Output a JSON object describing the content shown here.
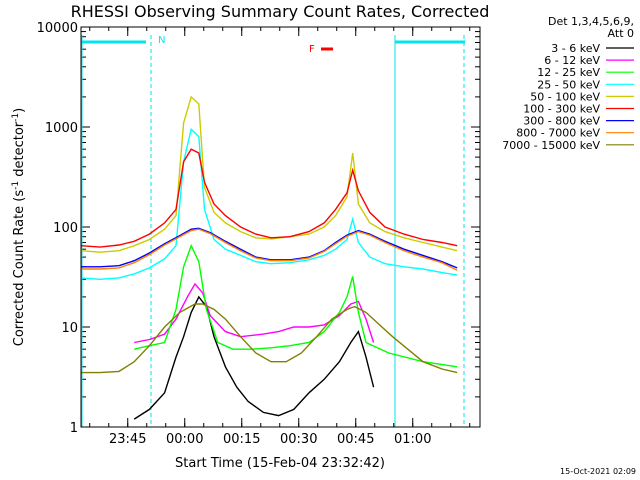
{
  "chart_data": {
    "type": "line",
    "title": "RHESSI Observing Summary Count Rates, Corrected",
    "xlabel": "Start Time (15-Feb-04 23:32:42)",
    "ylabel_main": "Corrected Count Rate (s",
    "ylabel_exp1": "-1",
    "ylabel_mid": " detector",
    "ylabel_exp2": "-1",
    "ylabel_end": ")",
    "yscale": "log",
    "ylim": [
      1,
      10000
    ],
    "xlim_minutes": [
      0,
      105
    ],
    "x_ticks": [
      {
        "label": "23:45",
        "t": 12.3
      },
      {
        "label": "00:00",
        "t": 27.3
      },
      {
        "label": "00:15",
        "t": 42.3
      },
      {
        "label": "00:30",
        "t": 57.3
      },
      {
        "label": "00:45",
        "t": 72.3
      },
      {
        "label": "01:00",
        "t": 87.3
      }
    ],
    "y_ticks": [
      {
        "label": "1",
        "v": 1
      },
      {
        "label": "10",
        "v": 10
      },
      {
        "label": "100",
        "v": 100
      },
      {
        "label": "1000",
        "v": 1000
      },
      {
        "label": "10000",
        "v": 10000
      }
    ],
    "legend_header": [
      "Det 1,3,4,5,6,9,",
      "Att 0"
    ],
    "legend_position": "right",
    "series": [
      {
        "name": "3 - 6 keV",
        "color": "#000000",
        "points": [
          [
            14,
            1.2
          ],
          [
            18,
            1.5
          ],
          [
            22,
            2.2
          ],
          [
            25,
            5
          ],
          [
            27,
            8
          ],
          [
            29,
            14
          ],
          [
            31,
            20
          ],
          [
            33,
            16
          ],
          [
            35,
            8
          ],
          [
            38,
            4
          ],
          [
            41,
            2.5
          ],
          [
            44,
            1.8
          ],
          [
            48,
            1.4
          ],
          [
            52,
            1.3
          ],
          [
            56,
            1.5
          ],
          [
            60,
            2.2
          ],
          [
            64,
            3
          ],
          [
            68,
            4.5
          ],
          [
            71,
            7
          ],
          [
            73,
            9
          ],
          [
            75,
            5
          ],
          [
            77,
            2.5
          ]
        ]
      },
      {
        "name": "6 - 12 keV",
        "color": "#ff00ff",
        "points": [
          [
            14,
            7
          ],
          [
            18,
            7.5
          ],
          [
            22,
            8.5
          ],
          [
            25,
            12
          ],
          [
            28,
            20
          ],
          [
            30,
            27
          ],
          [
            32,
            22
          ],
          [
            34,
            13
          ],
          [
            38,
            9
          ],
          [
            42,
            8
          ],
          [
            48,
            8.5
          ],
          [
            52,
            9
          ],
          [
            56,
            10
          ],
          [
            60,
            10
          ],
          [
            64,
            10.5
          ],
          [
            68,
            13
          ],
          [
            71,
            17
          ],
          [
            73,
            18
          ],
          [
            75,
            12
          ],
          [
            77,
            7
          ]
        ]
      },
      {
        "name": "12 - 25 keV",
        "color": "#00ff00",
        "points": [
          [
            14,
            6
          ],
          [
            18,
            6.5
          ],
          [
            22,
            7
          ],
          [
            25,
            15
          ],
          [
            27,
            40
          ],
          [
            29,
            65
          ],
          [
            31,
            45
          ],
          [
            33,
            15
          ],
          [
            36,
            7
          ],
          [
            40,
            6
          ],
          [
            45,
            6
          ],
          [
            50,
            6.2
          ],
          [
            55,
            6.5
          ],
          [
            60,
            7
          ],
          [
            64,
            9
          ],
          [
            68,
            14
          ],
          [
            70,
            20
          ],
          [
            71.5,
            32
          ],
          [
            73,
            14
          ],
          [
            75,
            7
          ],
          [
            81,
            5.5
          ],
          [
            90,
            4.5
          ],
          [
            99,
            4
          ]
        ]
      },
      {
        "name": "25 - 50 keV",
        "color": "#00ffff",
        "points": [
          [
            0,
            31
          ],
          [
            5,
            30
          ],
          [
            10,
            31
          ],
          [
            14,
            34
          ],
          [
            18,
            39
          ],
          [
            22,
            48
          ],
          [
            25,
            65
          ],
          [
            27,
            450
          ],
          [
            29,
            950
          ],
          [
            31,
            800
          ],
          [
            32.5,
            150
          ],
          [
            35,
            75
          ],
          [
            38,
            60
          ],
          [
            42,
            52
          ],
          [
            46,
            45
          ],
          [
            50,
            43
          ],
          [
            55,
            44
          ],
          [
            60,
            47
          ],
          [
            64,
            52
          ],
          [
            67,
            60
          ],
          [
            70,
            75
          ],
          [
            71.5,
            120
          ],
          [
            73,
            70
          ],
          [
            76,
            50
          ],
          [
            80,
            43
          ],
          [
            85,
            40
          ],
          [
            90,
            38
          ],
          [
            95,
            35
          ],
          [
            99,
            33
          ]
        ]
      },
      {
        "name": "50 - 100 keV",
        "color": "#cccc00",
        "points": [
          [
            0,
            58
          ],
          [
            5,
            56
          ],
          [
            10,
            58
          ],
          [
            14,
            65
          ],
          [
            18,
            75
          ],
          [
            22,
            95
          ],
          [
            25,
            130
          ],
          [
            27,
            1100
          ],
          [
            29,
            2000
          ],
          [
            31,
            1700
          ],
          [
            32.5,
            250
          ],
          [
            35,
            140
          ],
          [
            38,
            110
          ],
          [
            42,
            90
          ],
          [
            46,
            78
          ],
          [
            50,
            76
          ],
          [
            55,
            80
          ],
          [
            60,
            85
          ],
          [
            64,
            100
          ],
          [
            67,
            130
          ],
          [
            70,
            200
          ],
          [
            71.5,
            550
          ],
          [
            73,
            170
          ],
          [
            76,
            110
          ],
          [
            80,
            90
          ],
          [
            85,
            78
          ],
          [
            90,
            70
          ],
          [
            95,
            63
          ],
          [
            99,
            58
          ]
        ]
      },
      {
        "name": "100 - 300 keV",
        "color": "#ff0000",
        "points": [
          [
            0,
            65
          ],
          [
            5,
            63
          ],
          [
            10,
            66
          ],
          [
            14,
            72
          ],
          [
            18,
            85
          ],
          [
            22,
            110
          ],
          [
            25,
            150
          ],
          [
            27,
            450
          ],
          [
            29,
            600
          ],
          [
            31,
            550
          ],
          [
            32.5,
            280
          ],
          [
            35,
            170
          ],
          [
            38,
            130
          ],
          [
            42,
            100
          ],
          [
            46,
            85
          ],
          [
            50,
            78
          ],
          [
            55,
            80
          ],
          [
            60,
            90
          ],
          [
            64,
            110
          ],
          [
            67,
            150
          ],
          [
            70,
            220
          ],
          [
            71.5,
            370
          ],
          [
            73,
            230
          ],
          [
            76,
            140
          ],
          [
            80,
            100
          ],
          [
            85,
            85
          ],
          [
            90,
            75
          ],
          [
            95,
            70
          ],
          [
            99,
            65
          ]
        ]
      },
      {
        "name": "300 - 800 keV",
        "color": "#0000ff",
        "points": [
          [
            0,
            40
          ],
          [
            5,
            40
          ],
          [
            10,
            41
          ],
          [
            14,
            46
          ],
          [
            18,
            55
          ],
          [
            22,
            68
          ],
          [
            26,
            82
          ],
          [
            29,
            95
          ],
          [
            31,
            97
          ],
          [
            34,
            88
          ],
          [
            38,
            72
          ],
          [
            42,
            60
          ],
          [
            46,
            50
          ],
          [
            50,
            47
          ],
          [
            55,
            47
          ],
          [
            60,
            50
          ],
          [
            64,
            58
          ],
          [
            67,
            70
          ],
          [
            70,
            83
          ],
          [
            73,
            92
          ],
          [
            76,
            85
          ],
          [
            80,
            72
          ],
          [
            85,
            60
          ],
          [
            90,
            52
          ],
          [
            95,
            45
          ],
          [
            99,
            39
          ]
        ]
      },
      {
        "name": "800 - 7000 keV",
        "color": "#ff8000",
        "points": [
          [
            0,
            38
          ],
          [
            5,
            38
          ],
          [
            10,
            39
          ],
          [
            14,
            44
          ],
          [
            18,
            53
          ],
          [
            22,
            66
          ],
          [
            26,
            80
          ],
          [
            29,
            92
          ],
          [
            31,
            95
          ],
          [
            34,
            86
          ],
          [
            38,
            70
          ],
          [
            42,
            58
          ],
          [
            46,
            49
          ],
          [
            50,
            46
          ],
          [
            55,
            46
          ],
          [
            60,
            49
          ],
          [
            64,
            57
          ],
          [
            67,
            68
          ],
          [
            70,
            81
          ],
          [
            73,
            90
          ],
          [
            76,
            83
          ],
          [
            80,
            70
          ],
          [
            85,
            58
          ],
          [
            90,
            50
          ],
          [
            95,
            44
          ],
          [
            99,
            37
          ]
        ]
      },
      {
        "name": "7000 - 15000 keV",
        "color": "#808000",
        "points": [
          [
            0,
            3.5
          ],
          [
            5,
            3.5
          ],
          [
            10,
            3.6
          ],
          [
            14,
            4.5
          ],
          [
            18,
            6.5
          ],
          [
            22,
            10
          ],
          [
            26,
            14
          ],
          [
            30,
            17
          ],
          [
            32,
            17
          ],
          [
            35,
            15
          ],
          [
            38,
            12
          ],
          [
            42,
            8
          ],
          [
            46,
            5.5
          ],
          [
            50,
            4.5
          ],
          [
            54,
            4.5
          ],
          [
            58,
            5.5
          ],
          [
            62,
            8
          ],
          [
            66,
            12
          ],
          [
            70,
            15
          ],
          [
            72,
            16
          ],
          [
            75,
            14
          ],
          [
            78,
            11
          ],
          [
            82,
            8
          ],
          [
            86,
            6
          ],
          [
            90,
            4.5
          ],
          [
            95,
            3.8
          ],
          [
            99,
            3.5
          ]
        ]
      }
    ],
    "annotations": {
      "flare_marker": "F",
      "night_marker": "N",
      "timestamp": "15-Oct-2021 02:09"
    }
  }
}
